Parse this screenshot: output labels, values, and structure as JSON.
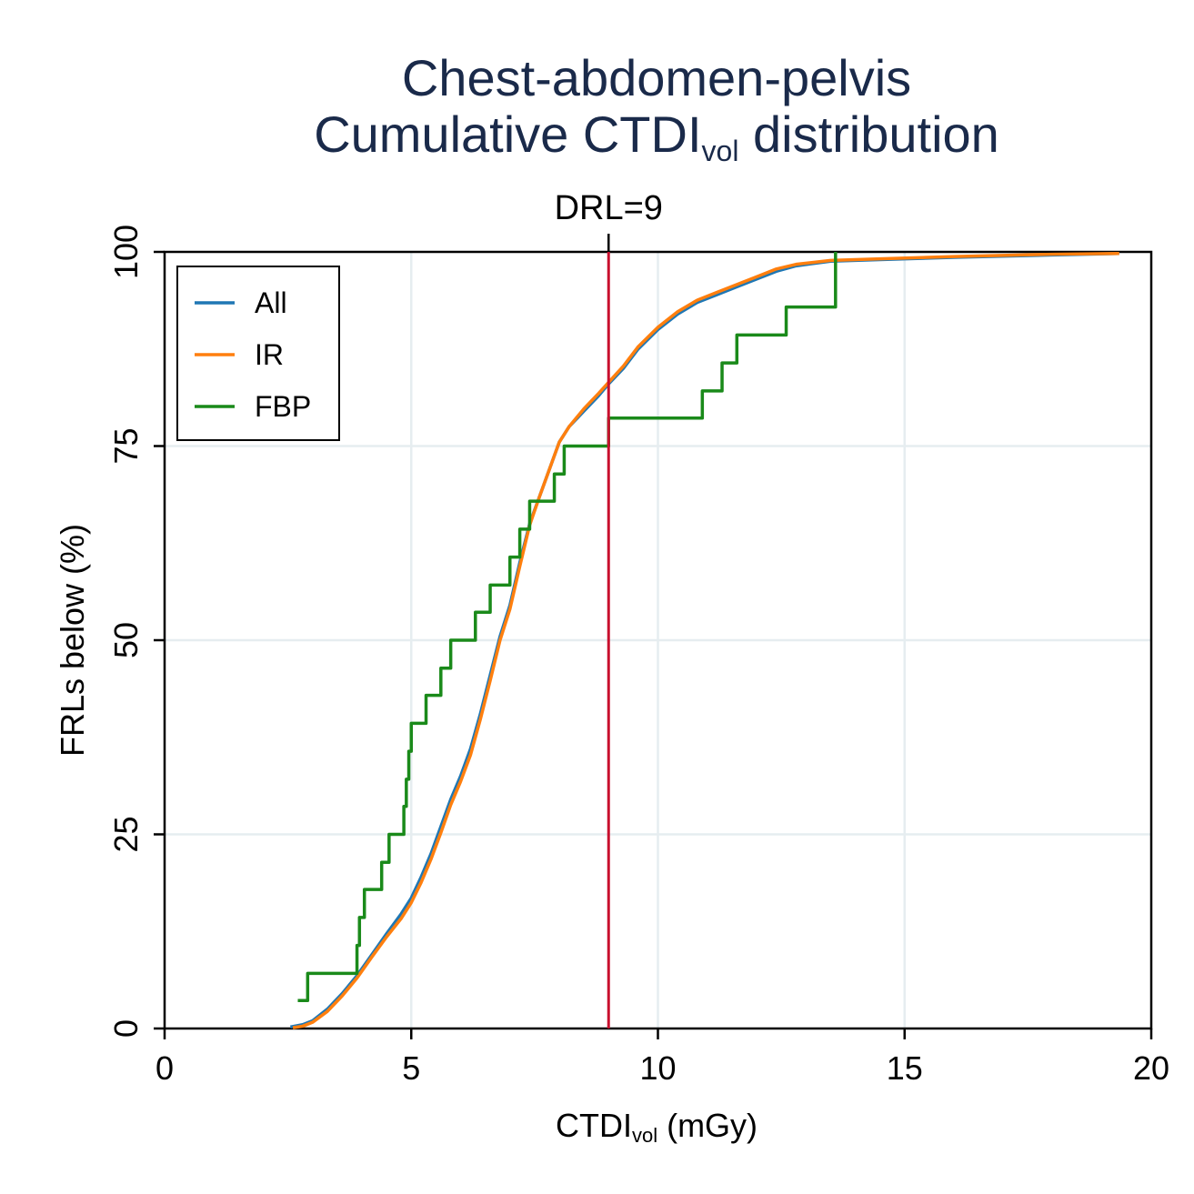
{
  "chart_data": {
    "type": "line",
    "title_line1": "Chest-abdomen-pelvis",
    "title_line2_main": "Cumulative CTDI",
    "title_line2_sub": "vol",
    "title_line2_end": " distribution",
    "xlabel_main": "CTDI",
    "xlabel_sub": "vol",
    "xlabel_end": " (mGy)",
    "ylabel": "FRLs below (%)",
    "xlim": [
      0,
      20
    ],
    "ylim": [
      0,
      100
    ],
    "x_ticks": [
      0,
      5,
      10,
      15,
      20
    ],
    "y_ticks": [
      0,
      25,
      50,
      75,
      100
    ],
    "grid": true,
    "legend_position": "top-left",
    "reference_line": {
      "x": 9,
      "label": "DRL=9",
      "color": "#c8102e"
    },
    "series": [
      {
        "name": "All",
        "color": "#1f77b4",
        "style": "smooth",
        "x": [
          2.55,
          2.8,
          3.0,
          3.3,
          3.6,
          3.9,
          4.2,
          4.5,
          4.8,
          5.0,
          5.2,
          5.4,
          5.6,
          5.8,
          6.0,
          6.2,
          6.4,
          6.6,
          6.8,
          7.0,
          7.2,
          7.4,
          7.6,
          7.8,
          8.0,
          8.2,
          8.5,
          8.8,
          9.0,
          9.3,
          9.6,
          10.0,
          10.4,
          10.8,
          11.2,
          11.6,
          12.0,
          12.4,
          12.8,
          13.5,
          14.5,
          16.0,
          18.0,
          19.35
        ],
        "values": [
          0.2,
          0.5,
          1.0,
          2.5,
          4.5,
          6.8,
          9.5,
          12.2,
          14.8,
          16.8,
          19.5,
          22.5,
          26.0,
          29.5,
          32.5,
          36.0,
          40.5,
          45.5,
          50.5,
          54.5,
          60.0,
          65.0,
          68.5,
          72.0,
          75.5,
          77.5,
          79.5,
          81.5,
          83.0,
          85.0,
          87.5,
          90.0,
          92.0,
          93.5,
          94.5,
          95.5,
          96.5,
          97.5,
          98.2,
          98.8,
          99.0,
          99.3,
          99.6,
          99.8
        ]
      },
      {
        "name": "IR",
        "color": "#ff7f0e",
        "style": "smooth",
        "x": [
          2.6,
          2.8,
          3.0,
          3.3,
          3.6,
          3.9,
          4.2,
          4.5,
          4.8,
          5.0,
          5.2,
          5.4,
          5.6,
          5.8,
          6.0,
          6.2,
          6.4,
          6.6,
          6.8,
          7.0,
          7.2,
          7.4,
          7.6,
          7.8,
          8.0,
          8.2,
          8.5,
          8.8,
          9.0,
          9.3,
          9.6,
          10.0,
          10.4,
          10.8,
          11.2,
          11.6,
          12.0,
          12.4,
          12.8,
          13.5,
          14.5,
          16.0,
          18.0,
          19.35
        ],
        "values": [
          0.1,
          0.3,
          0.8,
          2.2,
          4.2,
          6.5,
          9.2,
          11.8,
          14.2,
          16.2,
          18.8,
          21.8,
          25.2,
          28.8,
          31.8,
          35.2,
          39.8,
          44.8,
          50.0,
          54.0,
          59.5,
          64.8,
          68.5,
          72.0,
          75.5,
          77.5,
          79.8,
          81.8,
          83.2,
          85.3,
          87.8,
          90.3,
          92.3,
          93.8,
          94.8,
          95.8,
          96.8,
          97.8,
          98.4,
          98.9,
          99.1,
          99.4,
          99.7,
          99.8
        ]
      },
      {
        "name": "FBP",
        "color": "#1a8a1a",
        "style": "step",
        "x": [
          2.7,
          2.9,
          3.9,
          3.95,
          4.05,
          4.4,
          4.55,
          4.85,
          4.9,
          4.95,
          5.0,
          5.3,
          5.6,
          5.8,
          6.3,
          6.6,
          7.0,
          7.2,
          7.4,
          7.9,
          8.1,
          9.0,
          10.9,
          11.3,
          11.6,
          12.6,
          13.6
        ],
        "values": [
          3.6,
          7.1,
          10.7,
          14.3,
          17.9,
          21.4,
          25.0,
          28.6,
          32.1,
          35.7,
          39.3,
          42.9,
          46.4,
          50.0,
          53.6,
          57.1,
          60.7,
          64.3,
          67.9,
          71.4,
          75.0,
          78.6,
          82.1,
          85.7,
          89.3,
          92.9,
          96.4
        ]
      }
    ],
    "fbp_final": {
      "x": 13.6,
      "value": 100
    }
  }
}
